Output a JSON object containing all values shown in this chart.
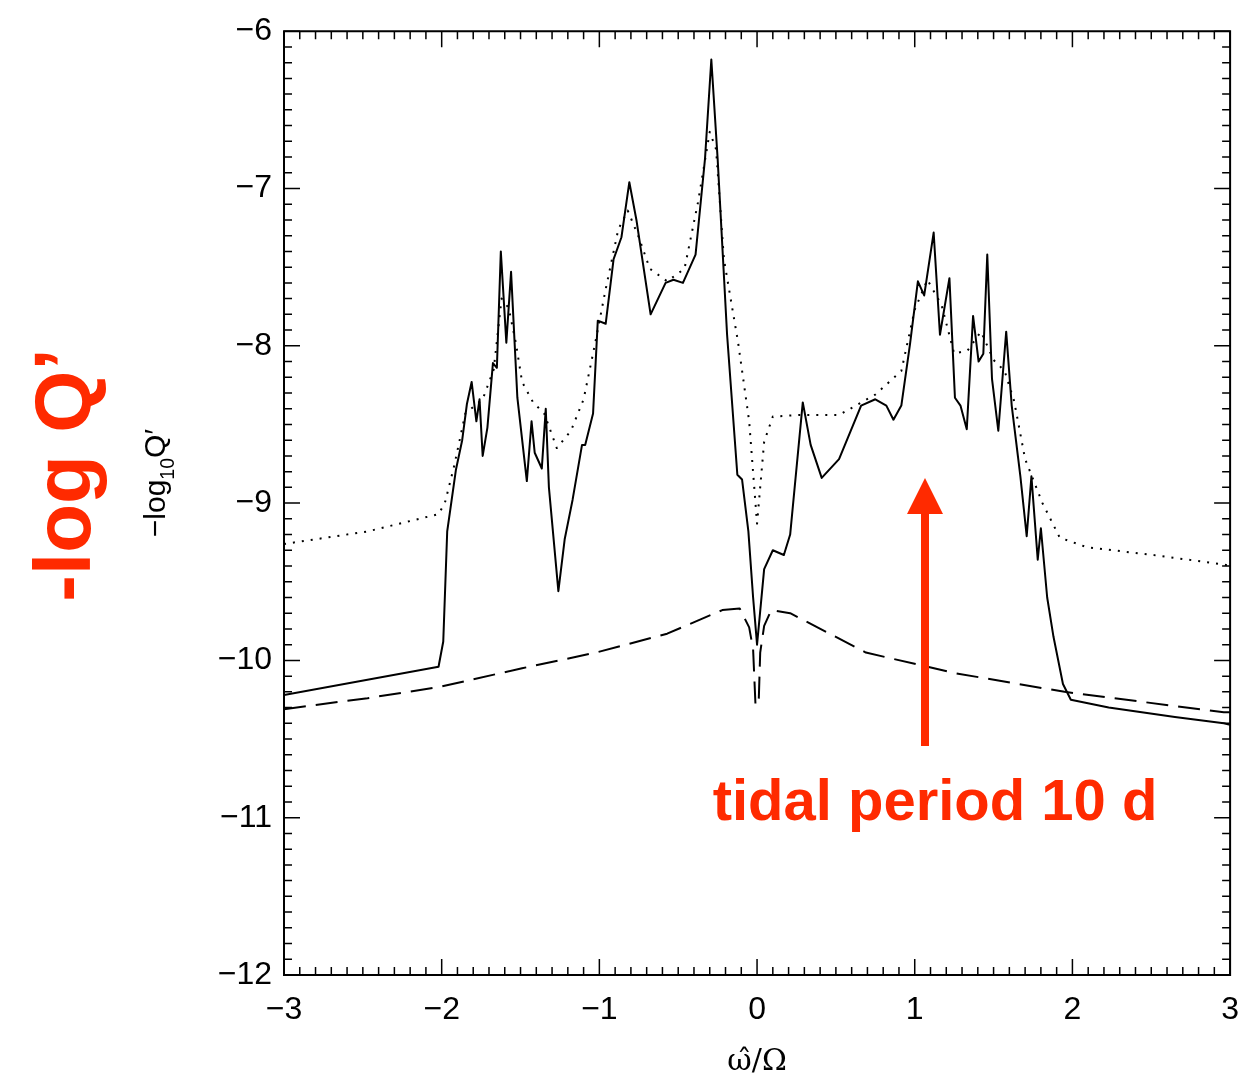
{
  "chart_data": {
    "type": "line",
    "xlabel": "ω̂/Ω",
    "ylabel": "−log$_{10}$Q′",
    "xlim": [
      -3,
      3
    ],
    "xticks": [
      -3,
      -2,
      -1,
      0,
      1,
      2,
      3
    ],
    "ylim": [
      -12,
      -6
    ],
    "yticks": [
      -12,
      -11,
      -10,
      -9,
      -8,
      -7,
      -6
    ],
    "grid": false,
    "legend": false,
    "marker": "none",
    "annotations": [
      "-log Q’",
      "tidal period 10 d"
    ],
    "series": [
      {
        "color": "#000000",
        "line_style": "solid",
        "x": [
          -3,
          -2.02,
          -1.99,
          -1.965,
          -1.91,
          -1.87,
          -1.84,
          -1.81,
          -1.78,
          -1.76,
          -1.74,
          -1.71,
          -1.675,
          -1.65,
          -1.625,
          -1.59,
          -1.56,
          -1.52,
          -1.46,
          -1.43,
          -1.41,
          -1.365,
          -1.34,
          -1.32,
          -1.26,
          -1.22,
          -1.17,
          -1.11,
          -1.09,
          -1.04,
          -1.01,
          -0.96,
          -0.91,
          -0.86,
          -0.81,
          -0.765,
          -0.675,
          -0.58,
          -0.53,
          -0.47,
          -0.39,
          -0.33,
          -0.29,
          -0.25,
          -0.19,
          -0.125,
          -0.095,
          -0.055,
          -0.025,
          0,
          0.045,
          0.1,
          0.17,
          0.21,
          0.29,
          0.34,
          0.41,
          0.52,
          0.66,
          0.75,
          0.82,
          0.865,
          0.915,
          0.97,
          1.02,
          1.06,
          1.12,
          1.16,
          1.22,
          1.255,
          1.29,
          1.33,
          1.37,
          1.405,
          1.435,
          1.46,
          1.49,
          1.53,
          1.58,
          1.615,
          1.67,
          1.71,
          1.74,
          1.78,
          1.8,
          1.84,
          1.88,
          1.94,
          1.99,
          2.23,
          2.65,
          2.96,
          3
        ],
        "values": [
          -10.22,
          -10.04,
          -9.88,
          -9.18,
          -8.79,
          -8.6,
          -8.37,
          -8.23,
          -8.48,
          -8.34,
          -8.7,
          -8.52,
          -8.11,
          -8.14,
          -7.4,
          -7.98,
          -7.53,
          -8.33,
          -8.86,
          -8.48,
          -8.68,
          -8.78,
          -8.4,
          -8.9,
          -9.56,
          -9.23,
          -8.98,
          -8.63,
          -8.63,
          -8.43,
          -7.84,
          -7.86,
          -7.45,
          -7.31,
          -6.96,
          -7.2,
          -7.8,
          -7.6,
          -7.58,
          -7.6,
          -7.42,
          -6.81,
          -6.18,
          -6.81,
          -7.93,
          -8.82,
          -8.85,
          -9.18,
          -9.6,
          -9.9,
          -9.42,
          -9.3,
          -9.33,
          -9.2,
          -8.36,
          -8.63,
          -8.84,
          -8.72,
          -8.38,
          -8.34,
          -8.38,
          -8.47,
          -8.38,
          -7.99,
          -7.59,
          -7.68,
          -7.28,
          -7.93,
          -7.57,
          -8.33,
          -8.38,
          -8.53,
          -7.81,
          -8.1,
          -8.05,
          -7.42,
          -8.21,
          -8.54,
          -7.91,
          -8.38,
          -8.83,
          -9.21,
          -8.83,
          -9.36,
          -9.16,
          -9.6,
          -9.85,
          -10.15,
          -10.25,
          -10.3,
          -10.36,
          -10.4,
          -10.41
        ]
      },
      {
        "color": "#000000",
        "line_style": "dotted",
        "x": [
          -3,
          -2.47,
          -2.02,
          -1.98,
          -1.92,
          -1.85,
          -1.74,
          -1.67,
          -1.62,
          -1.575,
          -1.53,
          -1.49,
          -1.42,
          -1.35,
          -1.27,
          -1.18,
          -1.1,
          -1.03,
          -0.96,
          -0.88,
          -0.82,
          -0.75,
          -0.68,
          -0.57,
          -0.46,
          -0.375,
          -0.3,
          -0.26,
          -0.21,
          -0.12,
          -0.05,
          0,
          0.045,
          0.1,
          0.27,
          0.52,
          0.75,
          0.915,
          1,
          1.08,
          1.17,
          1.25,
          1.335,
          1.42,
          1.5,
          1.57,
          1.63,
          1.7,
          1.81,
          1.92,
          2.09,
          2.51,
          2.96,
          3
        ],
        "values": [
          -9.26,
          -9.18,
          -9.07,
          -9,
          -8.76,
          -8.43,
          -8.34,
          -8.15,
          -7.7,
          -7.76,
          -7.98,
          -8.23,
          -8.36,
          -8.43,
          -8.65,
          -8.54,
          -8.34,
          -8,
          -7.64,
          -7.26,
          -7.14,
          -7.31,
          -7.51,
          -7.59,
          -7.51,
          -7.09,
          -6.64,
          -6.75,
          -7.45,
          -7.98,
          -8.48,
          -9.13,
          -8.61,
          -8.45,
          -8.44,
          -8.44,
          -8.31,
          -8.16,
          -7.77,
          -7.58,
          -7.74,
          -8.05,
          -8.03,
          -7.91,
          -8.09,
          -8.16,
          -8.35,
          -8.72,
          -9,
          -9.22,
          -9.28,
          -9.33,
          -9.39,
          -9.4
        ]
      },
      {
        "color": "#000000",
        "line_style": "dashed",
        "x": [
          -3,
          -2.47,
          -2.02,
          -1.49,
          -1.02,
          -0.57,
          -0.22,
          -0.11,
          -0.05,
          -0.025,
          -0.01,
          0.01,
          0.02,
          0.045,
          0.09,
          0.21,
          0.69,
          1.25,
          1.95,
          2.96,
          3
        ],
        "values": [
          -10.31,
          -10.24,
          -10.17,
          -10.05,
          -9.95,
          -9.83,
          -9.68,
          -9.67,
          -9.79,
          -9.93,
          -10.28,
          -10.28,
          -9.95,
          -9.78,
          -9.68,
          -9.7,
          -9.95,
          -10.08,
          -10.2,
          -10.33,
          -10.33
        ]
      }
    ]
  }
}
